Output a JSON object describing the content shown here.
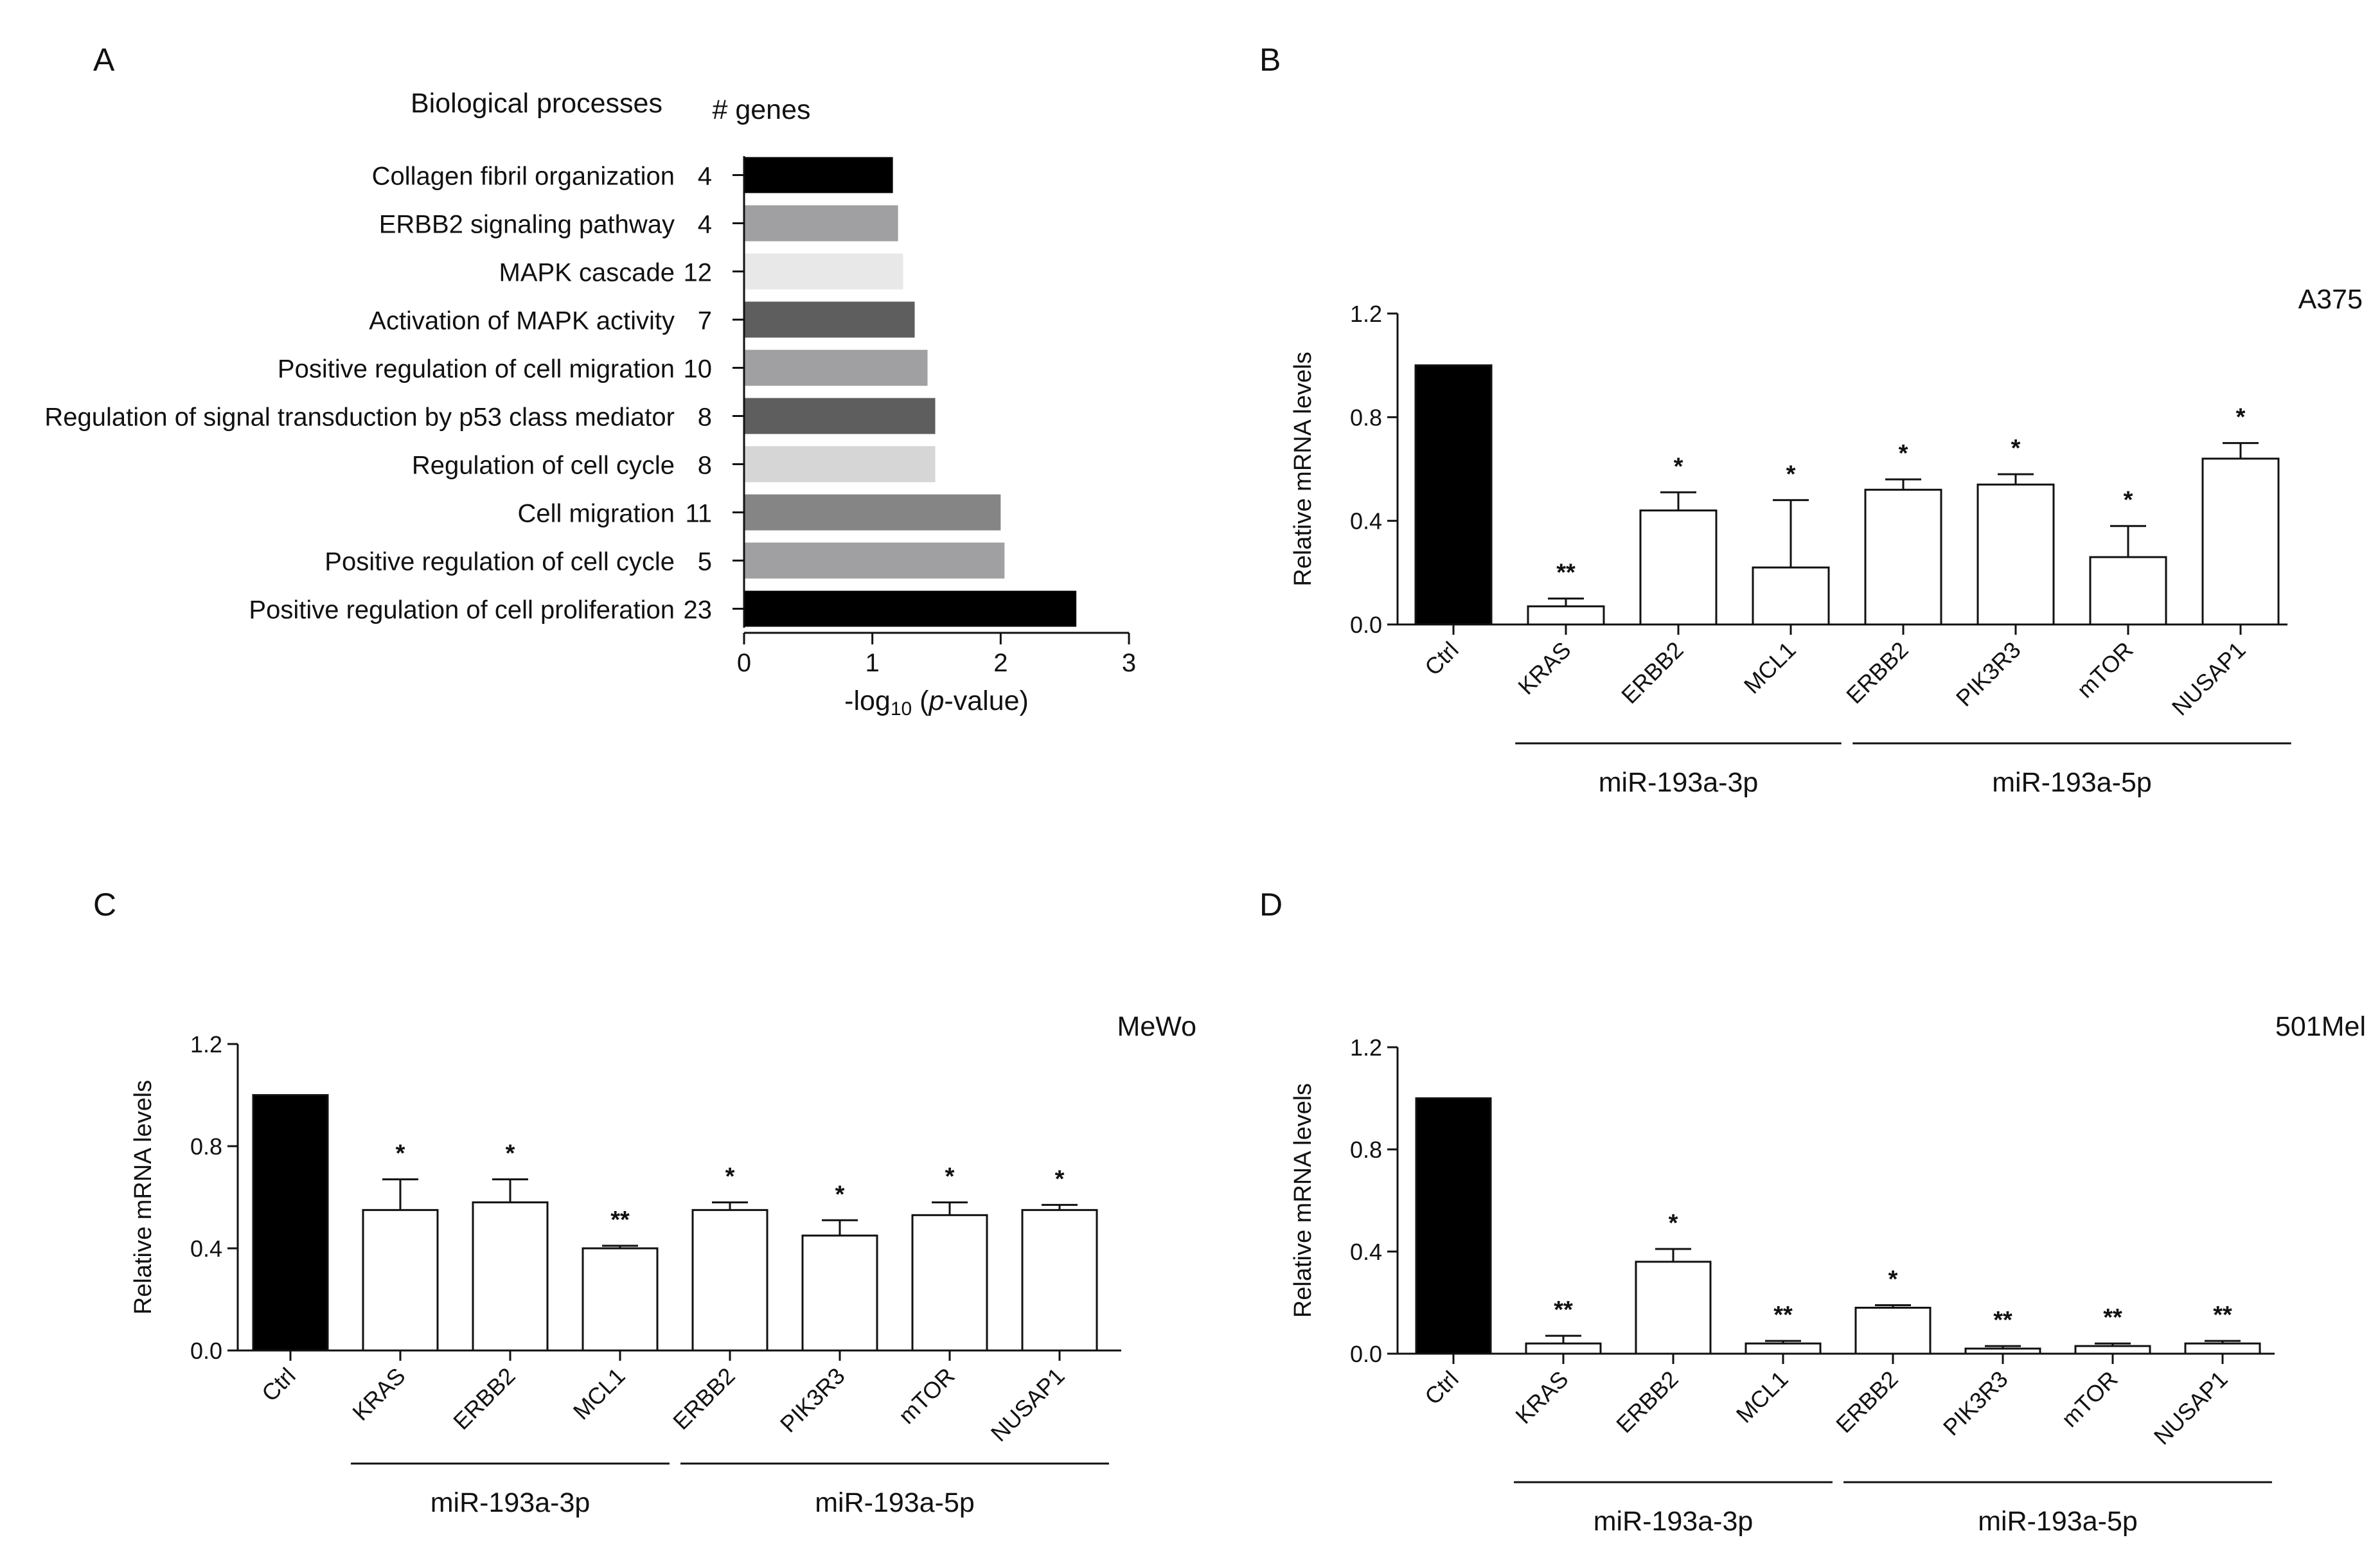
{
  "panels": {
    "A": {
      "letter": "A",
      "chart_data": {
        "type": "bar",
        "orientation": "horizontal",
        "header_left": "Biological processes",
        "header_right": "# genes",
        "categories": [
          "Collagen fibril organization",
          "ERBB2 signaling pathway",
          "MAPK cascade",
          "Activation of MAPK activity",
          "Positive regulation of cell migration",
          "Regulation of signal transduction by p53 class mediator",
          "Regulation of cell cycle",
          "Cell migration",
          "Positive regulation of cell cycle",
          "Positive regulation of cell proliferation"
        ],
        "gene_counts": [
          "4",
          "4",
          "12",
          "7",
          "10",
          "8",
          "8",
          "11",
          "5",
          "23"
        ],
        "values": [
          1.16,
          1.2,
          1.24,
          1.33,
          1.43,
          1.49,
          1.49,
          2.0,
          2.03,
          2.59
        ],
        "colors": [
          "#000000",
          "#a0a0a2",
          "#e8e8e8",
          "#5e5e5e",
          "#a0a0a2",
          "#5e5e5e",
          "#d6d6d6",
          "#858585",
          "#a0a0a2",
          "#000000"
        ],
        "xlim": [
          0,
          3
        ],
        "xticks": [
          "0",
          "1",
          "2",
          "3"
        ],
        "xlabel_prefix": "-log",
        "xlabel_sub": "10",
        "xlabel_open": " (",
        "xlabel_italic": "p",
        "xlabel_close": "-value)"
      }
    },
    "B": {
      "letter": "B",
      "chart_data": {
        "type": "bar",
        "cell_line": "A375",
        "ylabel": "Relative mRNA levels",
        "ylim": [
          0,
          1.2
        ],
        "yticks": [
          "0.0",
          "0.4",
          "0.8",
          "1.2"
        ],
        "categories": [
          "Ctrl",
          "KRAS",
          "ERBB2",
          "MCL1",
          "ERBB2",
          "PIK3R3",
          "mTOR",
          "NUSAP1"
        ],
        "values": [
          1.0,
          0.07,
          0.44,
          0.22,
          0.52,
          0.54,
          0.26,
          0.64
        ],
        "errors": [
          0,
          0.03,
          0.07,
          0.26,
          0.04,
          0.04,
          0.12,
          0.06
        ],
        "significance": [
          "",
          "**",
          "*",
          "*",
          "*",
          "*",
          "*",
          "*"
        ],
        "fills": [
          "#000000",
          "#ffffff",
          "#ffffff",
          "#ffffff",
          "#ffffff",
          "#ffffff",
          "#ffffff",
          "#ffffff"
        ],
        "groups": [
          {
            "label": "miR-193a-3p",
            "start": 1,
            "end": 3
          },
          {
            "label": "miR-193a-5p",
            "start": 4,
            "end": 7
          }
        ]
      }
    },
    "C": {
      "letter": "C",
      "chart_data": {
        "type": "bar",
        "cell_line": "MeWo",
        "ylabel": "Relative mRNA levels",
        "ylim": [
          0,
          1.2
        ],
        "yticks": [
          "0.0",
          "0.4",
          "0.8",
          "1.2"
        ],
        "categories": [
          "Ctrl",
          "KRAS",
          "ERBB2",
          "MCL1",
          "ERBB2",
          "PIK3R3",
          "mTOR",
          "NUSAP1"
        ],
        "values": [
          1.0,
          0.55,
          0.58,
          0.4,
          0.55,
          0.45,
          0.53,
          0.55
        ],
        "errors": [
          0,
          0.12,
          0.09,
          0.01,
          0.03,
          0.06,
          0.05,
          0.02
        ],
        "significance": [
          "",
          "*",
          "*",
          "**",
          "*",
          "*",
          "*",
          "*"
        ],
        "fills": [
          "#000000",
          "#ffffff",
          "#ffffff",
          "#ffffff",
          "#ffffff",
          "#ffffff",
          "#ffffff",
          "#ffffff"
        ],
        "groups": [
          {
            "label": "miR-193a-3p",
            "start": 1,
            "end": 3
          },
          {
            "label": "miR-193a-5p",
            "start": 4,
            "end": 7
          }
        ]
      }
    },
    "D": {
      "letter": "D",
      "chart_data": {
        "type": "bar",
        "cell_line": "501Mel",
        "ylabel": "Relative  mRNA levels",
        "ylim": [
          0,
          1.2
        ],
        "yticks": [
          "0.0",
          "0.4",
          "0.8",
          "1.2"
        ],
        "categories": [
          "Ctrl",
          "KRAS",
          "ERBB2",
          "MCL1",
          "ERBB2",
          "PIK3R3",
          "mTOR",
          "NUSAP1"
        ],
        "values": [
          1.0,
          0.04,
          0.36,
          0.04,
          0.18,
          0.02,
          0.03,
          0.04
        ],
        "errors": [
          0,
          0.03,
          0.05,
          0.01,
          0.01,
          0.01,
          0.01,
          0.01
        ],
        "significance": [
          "",
          "**",
          "*",
          "**",
          "*",
          "**",
          "**",
          "**"
        ],
        "fills": [
          "#000000",
          "#ffffff",
          "#ffffff",
          "#ffffff",
          "#ffffff",
          "#ffffff",
          "#ffffff",
          "#ffffff"
        ],
        "groups": [
          {
            "label": "miR-193a-3p",
            "start": 1,
            "end": 3
          },
          {
            "label": "miR-193a-5p",
            "start": 4,
            "end": 7
          }
        ]
      }
    }
  }
}
